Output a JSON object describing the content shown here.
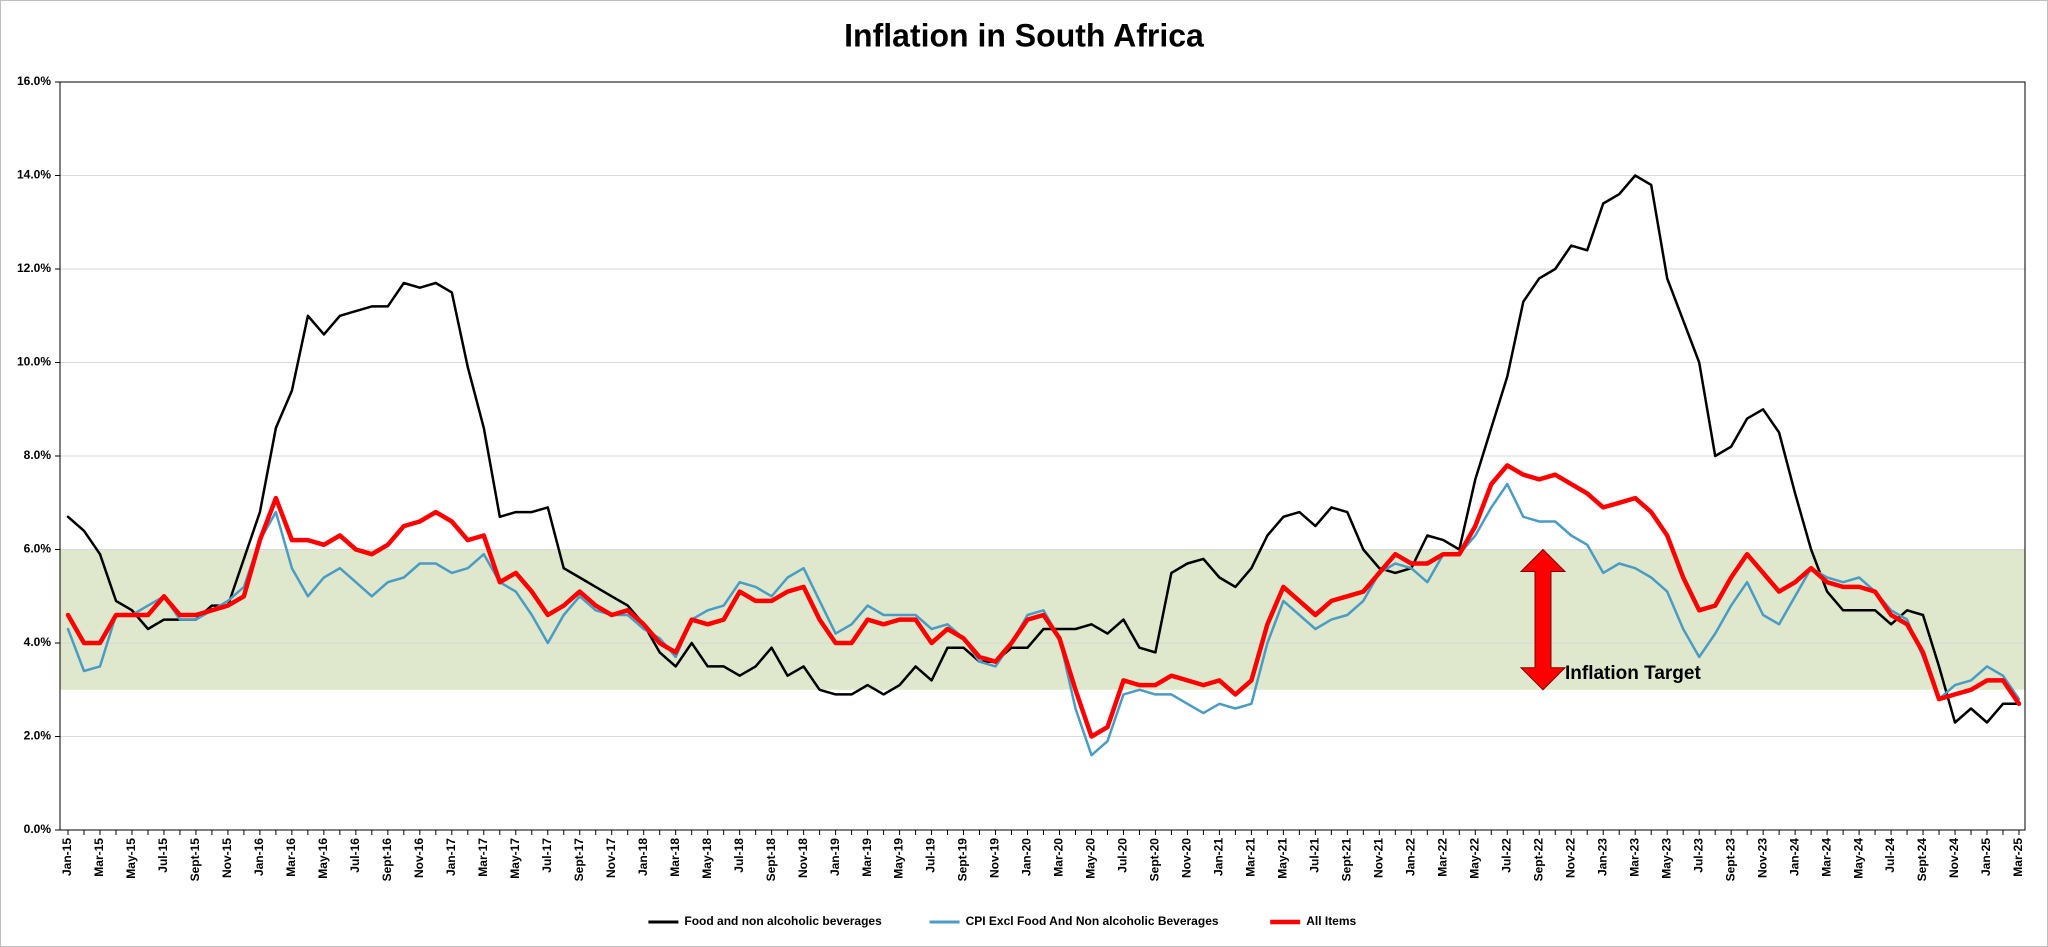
{
  "chart_data": {
    "type": "line",
    "title": "Inflation in South Africa",
    "categories": [
      "Jan-15",
      null,
      "Mar-15",
      null,
      "May-15",
      null,
      "Jul-15",
      null,
      "Sept-15",
      null,
      "Nov-15",
      null,
      "Jan-16",
      null,
      "Mar-16",
      null,
      "May-16",
      null,
      "Jul-16",
      null,
      "Sept-16",
      null,
      "Nov-16",
      null,
      "Jan-17",
      null,
      "Mar-17",
      null,
      "May-17",
      null,
      "Jul-17",
      null,
      "Sept-17",
      null,
      "Nov-17",
      null,
      "Jan-18",
      null,
      "Mar-18",
      null,
      "May-18",
      null,
      "Jul-18",
      null,
      "Sept-18",
      null,
      "Nov-18",
      null,
      "Jan-19",
      null,
      "Mar-19",
      null,
      "May-19",
      null,
      "Jul-19",
      null,
      "Sept-19",
      null,
      "Nov-19",
      null,
      "Jan-20",
      null,
      "Mar-20",
      null,
      "May-20",
      null,
      "Jul-20",
      null,
      "Sept-20",
      null,
      "Nov-20",
      null,
      "Jan-21",
      null,
      "Mar-21",
      null,
      "May-21",
      null,
      "Jul-21",
      null,
      "Sept-21",
      null,
      "Nov-21",
      null,
      "Jan-22",
      null,
      "Mar-22",
      null,
      "May-22",
      null,
      "Jul-22",
      null,
      "Sept-22",
      null,
      "Nov-22",
      null,
      "Jan-23",
      null,
      "Mar-23",
      null,
      "May-23",
      null,
      "Jul-23",
      null,
      "Sept-23",
      null,
      "Nov-23",
      null,
      "Jan-24",
      null,
      "Mar-24",
      null,
      "May-24",
      null,
      "Jul-24",
      null,
      "Sept-24",
      null,
      "Nov-24",
      null,
      "Jan-25",
      null,
      "Mar-25"
    ],
    "series": [
      {
        "name": "Food and non alcoholic beverages",
        "color": "#000000",
        "width": 2.5,
        "values": [
          6.7,
          6.4,
          5.9,
          4.9,
          4.7,
          4.3,
          4.5,
          4.5,
          4.5,
          4.8,
          4.8,
          5.8,
          6.8,
          8.6,
          9.4,
          11.0,
          10.6,
          11.0,
          11.1,
          11.2,
          11.2,
          11.7,
          11.6,
          11.7,
          11.5,
          9.9,
          8.6,
          6.7,
          6.8,
          6.8,
          6.9,
          5.6,
          5.4,
          5.2,
          5.0,
          4.8,
          4.4,
          3.8,
          3.5,
          4.0,
          3.5,
          3.5,
          3.3,
          3.5,
          3.9,
          3.3,
          3.5,
          3.0,
          2.9,
          2.9,
          3.1,
          2.9,
          3.1,
          3.5,
          3.2,
          3.9,
          3.9,
          3.6,
          3.6,
          3.9,
          3.9,
          4.3,
          4.3,
          4.3,
          4.4,
          4.2,
          4.5,
          3.9,
          3.8,
          5.5,
          5.7,
          5.8,
          5.4,
          5.2,
          5.6,
          6.3,
          6.7,
          6.8,
          6.5,
          6.9,
          6.8,
          6.0,
          5.6,
          5.5,
          5.6,
          6.3,
          6.2,
          6.0,
          7.5,
          8.6,
          9.7,
          11.3,
          11.8,
          12.0,
          12.5,
          12.4,
          13.4,
          13.6,
          14.0,
          13.8,
          11.8,
          10.9,
          10.0,
          8.0,
          8.2,
          8.8,
          9.0,
          8.5,
          7.2,
          6.0,
          5.1,
          4.7,
          4.7,
          4.7,
          4.4,
          4.7,
          4.6,
          3.5,
          2.3,
          2.6,
          2.3,
          2.7,
          2.7
        ]
      },
      {
        "name": "CPI Excl Food And Non alcoholic Beverages",
        "color": "#4a9cc4",
        "width": 2.5,
        "values": [
          4.3,
          3.4,
          3.5,
          4.6,
          4.6,
          4.8,
          5.0,
          4.5,
          4.5,
          4.7,
          4.9,
          5.2,
          6.2,
          6.8,
          5.6,
          5.0,
          5.4,
          5.6,
          5.3,
          5.0,
          5.3,
          5.4,
          5.7,
          5.7,
          5.5,
          5.6,
          5.9,
          5.3,
          5.1,
          4.6,
          4.0,
          4.6,
          5.0,
          4.7,
          4.6,
          4.6,
          4.3,
          4.1,
          3.7,
          4.5,
          4.7,
          4.8,
          5.3,
          5.2,
          5.0,
          5.4,
          5.6,
          4.9,
          4.2,
          4.4,
          4.8,
          4.6,
          4.6,
          4.6,
          4.3,
          4.4,
          4.1,
          3.6,
          3.5,
          4.0,
          4.6,
          4.7,
          4.1,
          2.6,
          1.6,
          1.9,
          2.9,
          3.0,
          2.9,
          2.9,
          2.7,
          2.5,
          2.7,
          2.6,
          2.7,
          4.0,
          4.9,
          4.6,
          4.3,
          4.5,
          4.6,
          4.9,
          5.5,
          5.7,
          5.6,
          5.3,
          5.9,
          5.9,
          6.3,
          6.9,
          7.4,
          6.7,
          6.6,
          6.6,
          6.3,
          6.1,
          5.5,
          5.7,
          5.6,
          5.4,
          5.1,
          4.3,
          3.7,
          4.2,
          4.8,
          5.3,
          4.6,
          4.4,
          5.0,
          5.6,
          5.4,
          5.3,
          5.4,
          5.1,
          4.7,
          4.5,
          3.7,
          2.8,
          3.1,
          3.2,
          3.5,
          3.3,
          2.8
        ]
      },
      {
        "name": "All Items",
        "color": "#ff0000",
        "width": 4.5,
        "values": [
          4.6,
          4.0,
          4.0,
          4.6,
          4.6,
          4.6,
          5.0,
          4.6,
          4.6,
          4.7,
          4.8,
          5.0,
          6.2,
          7.1,
          6.2,
          6.2,
          6.1,
          6.3,
          6.0,
          5.9,
          6.1,
          6.5,
          6.6,
          6.8,
          6.6,
          6.2,
          6.3,
          5.3,
          5.5,
          5.1,
          4.6,
          4.8,
          5.1,
          4.8,
          4.6,
          4.7,
          4.4,
          4.0,
          3.8,
          4.5,
          4.4,
          4.5,
          5.1,
          4.9,
          4.9,
          5.1,
          5.2,
          4.5,
          4.0,
          4.0,
          4.5,
          4.4,
          4.5,
          4.5,
          4.0,
          4.3,
          4.1,
          3.7,
          3.6,
          4.0,
          4.5,
          4.6,
          4.1,
          3.0,
          2.0,
          2.2,
          3.2,
          3.1,
          3.1,
          3.3,
          3.2,
          3.1,
          3.2,
          2.9,
          3.2,
          4.4,
          5.2,
          4.9,
          4.6,
          4.9,
          5.0,
          5.1,
          5.5,
          5.9,
          5.7,
          5.7,
          5.9,
          5.9,
          6.5,
          7.4,
          7.8,
          7.6,
          7.5,
          7.6,
          7.4,
          7.2,
          6.9,
          7.0,
          7.1,
          6.8,
          6.3,
          5.4,
          4.7,
          4.8,
          5.4,
          5.9,
          5.5,
          5.1,
          5.3,
          5.6,
          5.3,
          5.2,
          5.2,
          5.1,
          4.6,
          4.4,
          3.8,
          2.8,
          2.9,
          3.0,
          3.2,
          3.2,
          2.7
        ]
      }
    ],
    "ylim": [
      0,
      16
    ],
    "yticks": [
      {
        "value": 0,
        "label": "0.0%"
      },
      {
        "value": 2,
        "label": "2.0%"
      },
      {
        "value": 4,
        "label": "4.0%"
      },
      {
        "value": 6,
        "label": "6.0%"
      },
      {
        "value": 8,
        "label": "8.0%"
      },
      {
        "value": 10,
        "label": "10.0%"
      },
      {
        "value": 12,
        "label": "12.0%"
      },
      {
        "value": 14,
        "label": "14.0%"
      },
      {
        "value": 16,
        "label": "16.0%"
      }
    ],
    "grid": true,
    "target_band": {
      "range": [
        3,
        6
      ],
      "color": "#dfe8cc",
      "label": "Inflation Target",
      "arrow_color": "#ff0000"
    },
    "legend": "bottom"
  }
}
